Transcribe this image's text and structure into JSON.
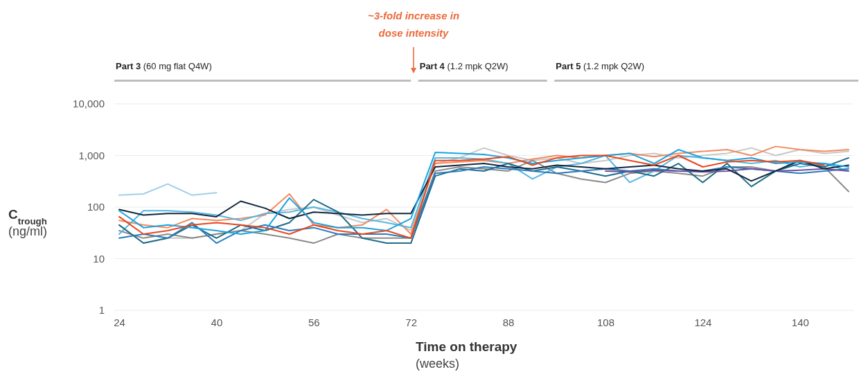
{
  "chart_data": {
    "type": "line",
    "xlabel": "Time on therapy (weeks)",
    "ylabel": "C$_{trough}$ (ng/ml)",
    "categories": [
      "24",
      null,
      null,
      null,
      "40",
      null,
      null,
      null,
      "56",
      null,
      null,
      null,
      "72",
      null,
      null,
      null,
      "88",
      null,
      null,
      null,
      "108",
      null,
      null,
      null,
      "124",
      null,
      null,
      null,
      "140",
      null,
      null
    ],
    "log": "y",
    "ylim": [
      1,
      10000
    ],
    "yticks": [
      1,
      10,
      100,
      {
        "value": 1000,
        "label": "1,000"
      },
      {
        "value": 10000,
        "label": "10,000"
      }
    ],
    "grid": "y",
    "annotations": [
      "~3-fold increase in dose intensity",
      "Part 3 (60 mg flat Q4W)",
      "Part 4 (1.2 mpk Q2W)",
      "Part 5 (1.2 mpk Q2W)"
    ],
    "series": [
      {
        "color": "#9dd1e8",
        "values": [
          170,
          180,
          280,
          170,
          190,
          null,
          null,
          null,
          null,
          null,
          null,
          null,
          null,
          null,
          null,
          null,
          null,
          null,
          null,
          null,
          null,
          null,
          null,
          null,
          null,
          null,
          null,
          null,
          null,
          null,
          null
        ]
      },
      {
        "color": "#c7c7c7",
        "values": [
          45,
          20,
          25,
          25,
          30,
          35,
          75,
          90,
          100,
          70,
          50,
          60,
          35,
          700,
          900,
          1400,
          1000,
          800,
          900,
          700,
          800,
          1000,
          1100,
          900,
          1000,
          1100,
          1400,
          1000,
          1300,
          1100,
          1200
        ]
      },
      {
        "color": "#8a8a8a",
        "values": [
          35,
          25,
          30,
          25,
          30,
          35,
          30,
          25,
          20,
          30,
          25,
          25,
          25,
          500,
          600,
          550,
          500,
          800,
          450,
          350,
          300,
          450,
          500,
          450,
          400,
          600,
          600,
          500,
          800,
          600,
          200
        ]
      },
      {
        "color": "#f4895f",
        "values": [
          55,
          45,
          40,
          60,
          55,
          60,
          70,
          180,
          45,
          40,
          45,
          90,
          30,
          700,
          750,
          800,
          700,
          850,
          1000,
          900,
          1000,
          1100,
          950,
          1100,
          1200,
          1300,
          1000,
          1500,
          1300,
          1200,
          1300
        ]
      },
      {
        "color": "#55b7e0",
        "values": [
          30,
          85,
          85,
          80,
          70,
          55,
          75,
          80,
          100,
          80,
          60,
          50,
          40,
          900,
          900,
          850,
          700,
          350,
          600,
          700,
          1000,
          300,
          500,
          1000,
          900,
          800,
          700,
          800,
          600,
          700,
          500
        ]
      },
      {
        "color": "#1d6c8a",
        "values": [
          45,
          20,
          25,
          45,
          25,
          45,
          35,
          50,
          140,
          80,
          25,
          20,
          20,
          400,
          550,
          500,
          700,
          500,
          600,
          500,
          400,
          500,
          400,
          700,
          300,
          700,
          250,
          500,
          700,
          600,
          900
        ]
      },
      {
        "color": "#2b7bb9",
        "values": [
          25,
          30,
          25,
          50,
          20,
          35,
          45,
          35,
          40,
          30,
          30,
          30,
          25,
          450,
          500,
          600,
          550,
          500,
          450,
          500,
          550,
          500,
          550,
          500,
          500,
          600,
          550,
          500,
          450,
          500,
          550
        ]
      },
      {
        "color": "#6b4fa0",
        "values": [
          null,
          null,
          null,
          null,
          null,
          null,
          null,
          null,
          null,
          null,
          null,
          null,
          null,
          null,
          null,
          null,
          null,
          null,
          null,
          null,
          500,
          480,
          520,
          500,
          480,
          500,
          550,
          500,
          520,
          550,
          500
        ]
      },
      {
        "color": "#10263d",
        "values": [
          90,
          70,
          75,
          75,
          65,
          130,
          95,
          60,
          80,
          75,
          70,
          75,
          75,
          600,
          650,
          700,
          600,
          550,
          650,
          600,
          550,
          600,
          650,
          550,
          500,
          550,
          320,
          500,
          800,
          550,
          650
        ]
      },
      {
        "color": "#1aa3e0",
        "values": [
          85,
          40,
          45,
          40,
          35,
          30,
          35,
          150,
          50,
          40,
          40,
          35,
          60,
          1150,
          1100,
          1050,
          900,
          700,
          800,
          900,
          1000,
          1100,
          700,
          1300,
          900,
          800,
          900,
          700,
          750,
          700,
          600
        ]
      },
      {
        "color": "#e8461c",
        "values": [
          65,
          30,
          35,
          45,
          50,
          45,
          40,
          30,
          45,
          35,
          30,
          35,
          25,
          800,
          800,
          850,
          950,
          650,
          900,
          1000,
          1000,
          800,
          650,
          1000,
          600,
          750,
          800,
          750,
          800,
          650,
          null
        ]
      }
    ]
  }
}
